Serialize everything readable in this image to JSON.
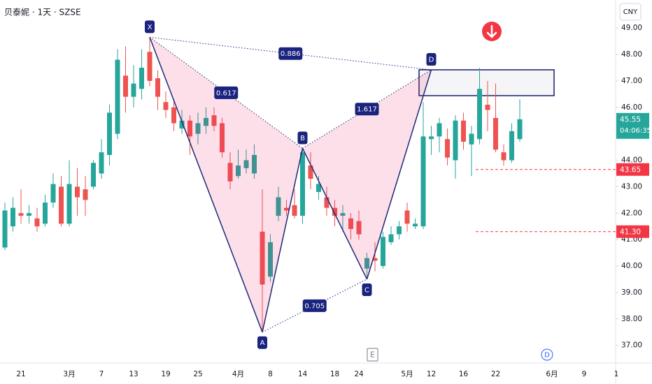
{
  "chart_data": {
    "type": "candlestick",
    "title": "贝泰妮 · 1天 · SZSE",
    "currency": "CNY",
    "up_color": "#26a69a",
    "down_color": "#ef5350",
    "categories": [
      null,
      null,
      "21",
      null,
      null,
      null,
      null,
      null,
      "3月",
      null,
      null,
      null,
      "7",
      null,
      null,
      null,
      "13",
      null,
      null,
      null,
      "19",
      null,
      null,
      null,
      "25",
      null,
      null,
      null,
      null,
      "4月",
      null,
      null,
      null,
      "8",
      null,
      null,
      null,
      "14",
      null,
      null,
      null,
      "18",
      null,
      null,
      "24",
      null,
      null,
      null,
      null,
      null,
      "5月",
      null,
      null,
      "12",
      null,
      null,
      null,
      "16",
      null,
      null,
      null,
      "22",
      null,
      null,
      null,
      null,
      null,
      null,
      "6月",
      null,
      null,
      null,
      "9",
      null,
      null,
      null,
      "1"
    ],
    "open": [
      40.7,
      41.5,
      42.0,
      41.9,
      41.8,
      41.6,
      42.4,
      43.0,
      41.6,
      43.0,
      42.9,
      43.0,
      43.5,
      44.2,
      45.0,
      47.2,
      46.4,
      46.7,
      48.1,
      47.1,
      46.2,
      46.0,
      45.2,
      45.5,
      45.0,
      45.3,
      45.7,
      45.4,
      43.9,
      43.4,
      43.7,
      43.5,
      41.3,
      39.6,
      41.9,
      42.2,
      42.3,
      41.9,
      43.8,
      42.8,
      42.6,
      42.2,
      41.9,
      41.8,
      41.7,
      39.9,
      40.3,
      40.0,
      40.9,
      41.2,
      42.1,
      41.5,
      41.5,
      44.8,
      44.9,
      44.8,
      44.0,
      45.5,
      44.6,
      44.8,
      46.1,
      45.6,
      44.3,
      44.0,
      44.8,
      null,
      null,
      null,
      null,
      null,
      null,
      null,
      null,
      null,
      null,
      null,
      null
    ],
    "high": [
      42.4,
      42.6,
      42.9,
      42.3,
      42.2,
      42.7,
      43.5,
      43.4,
      44.0,
      43.7,
      43.4,
      44.0,
      44.8,
      46.1,
      48.2,
      48.3,
      47.6,
      48.2,
      48.65,
      47.4,
      46.6,
      46.3,
      45.9,
      45.7,
      45.8,
      46.0,
      46.0,
      45.6,
      44.3,
      44.4,
      44.4,
      44.6,
      42.9,
      41.2,
      43.0,
      42.5,
      42.9,
      44.45,
      44.3,
      43.4,
      43.0,
      42.5,
      42.3,
      42.0,
      42.1,
      40.5,
      40.9,
      41.3,
      41.5,
      41.7,
      42.4,
      41.8,
      46.2,
      45.3,
      45.6,
      45.2,
      45.7,
      45.8,
      45.3,
      47.5,
      47.0,
      46.9,
      44.6,
      45.4,
      46.3,
      null,
      null,
      null,
      null,
      null,
      null,
      null,
      null,
      null,
      null,
      null,
      null
    ],
    "low": [
      40.6,
      41.3,
      41.6,
      41.6,
      41.3,
      41.5,
      42.2,
      41.5,
      41.5,
      41.9,
      41.9,
      42.9,
      43.3,
      43.8,
      44.8,
      45.8,
      46.0,
      46.3,
      46.8,
      45.9,
      45.6,
      45.1,
      45.0,
      44.2,
      44.6,
      45.0,
      45.1,
      44.1,
      42.9,
      43.3,
      43.5,
      43.3,
      37.5,
      39.4,
      41.7,
      41.9,
      41.8,
      41.6,
      42.9,
      42.5,
      41.9,
      41.5,
      41.3,
      41.0,
      41.0,
      39.5,
      39.8,
      39.9,
      40.8,
      41.0,
      41.3,
      41.4,
      41.4,
      44.2,
      44.3,
      43.8,
      43.3,
      44.4,
      43.4,
      44.6,
      45.1,
      44.3,
      43.8,
      43.9,
      44.7,
      null,
      null,
      null,
      null,
      null,
      null,
      null,
      null,
      null,
      null,
      null,
      null
    ],
    "close": [
      42.1,
      42.2,
      41.9,
      42.0,
      41.5,
      42.4,
      43.1,
      41.6,
      43.1,
      42.6,
      42.5,
      43.9,
      44.3,
      45.8,
      47.8,
      46.4,
      46.9,
      47.5,
      47.0,
      46.4,
      45.9,
      45.4,
      45.5,
      44.9,
      45.4,
      45.6,
      45.3,
      44.3,
      43.2,
      43.8,
      44.0,
      44.2,
      39.3,
      40.9,
      42.6,
      42.1,
      41.9,
      44.3,
      43.3,
      43.1,
      42.2,
      41.9,
      42.0,
      41.4,
      41.2,
      40.3,
      40.2,
      41.1,
      41.2,
      41.5,
      41.6,
      41.6,
      44.9,
      44.9,
      45.4,
      44.1,
      45.5,
      44.7,
      45.0,
      46.7,
      45.9,
      44.4,
      44.0,
      45.1,
      45.55,
      null,
      null,
      null,
      null,
      null,
      null,
      null,
      null,
      null,
      null,
      null,
      null
    ],
    "ylim": [
      36.33,
      50.06
    ],
    "yticks": [
      {
        "value": 37,
        "label": "37.00"
      },
      {
        "value": 38,
        "label": "38.00"
      },
      {
        "value": 39,
        "label": "39.00"
      },
      {
        "value": 40,
        "label": "40.00"
      },
      {
        "value": 41,
        "label": "41.00"
      },
      {
        "value": 42,
        "label": "42.00"
      },
      {
        "value": 43,
        "label": "43.00"
      },
      {
        "value": 44,
        "label": "44.00"
      },
      {
        "value": 45,
        "label": "45.00"
      },
      {
        "value": 46,
        "label": "46.00"
      },
      {
        "value": 47,
        "label": "47.00"
      },
      {
        "value": 48,
        "label": "48.00"
      },
      {
        "value": 49,
        "label": "49.00"
      }
    ],
    "price_lines": [
      {
        "value": 43.65,
        "label": "43.65"
      },
      {
        "value": 41.3,
        "label": "41.30"
      }
    ],
    "last_price": {
      "value": 45.55,
      "label": "45.55",
      "countdown": "04:06:35"
    },
    "pattern": {
      "points": [
        {
          "label": "X",
          "bar": 18,
          "value": 48.65
        },
        {
          "label": "A",
          "bar": 32,
          "value": 37.5
        },
        {
          "label": "B",
          "bar": 37,
          "value": 44.45
        },
        {
          "label": "C",
          "bar": 45,
          "value": 39.5
        },
        {
          "label": "D",
          "bar": 53,
          "value": 47.42
        }
      ],
      "ratios": [
        0.886,
        0.617,
        1.617,
        0.705
      ]
    },
    "events": [
      "E",
      "D"
    ]
  }
}
